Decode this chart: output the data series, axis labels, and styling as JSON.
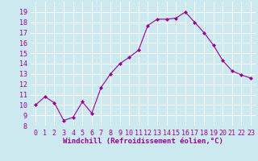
{
  "x": [
    0,
    1,
    2,
    3,
    4,
    5,
    6,
    7,
    8,
    9,
    10,
    11,
    12,
    13,
    14,
    15,
    16,
    17,
    18,
    19,
    20,
    21,
    22,
    23
  ],
  "y": [
    10.0,
    10.8,
    10.2,
    8.5,
    8.8,
    10.3,
    9.2,
    11.7,
    13.0,
    14.0,
    14.6,
    15.3,
    17.7,
    18.3,
    18.3,
    18.4,
    19.0,
    18.0,
    17.0,
    15.8,
    14.3,
    13.3,
    12.9,
    12.6
  ],
  "line_color": "#990099",
  "marker": "D",
  "marker_size": 2,
  "xlabel": "Windchill (Refroidissement éolien,°C)",
  "ylim": [
    8,
    20
  ],
  "yticks": [
    8,
    9,
    10,
    11,
    12,
    13,
    14,
    15,
    16,
    17,
    18,
    19
  ],
  "background_color": "#cce9f0",
  "grid_color": "#ffffff",
  "xlabel_fontsize": 6.5,
  "tick_fontsize": 6
}
